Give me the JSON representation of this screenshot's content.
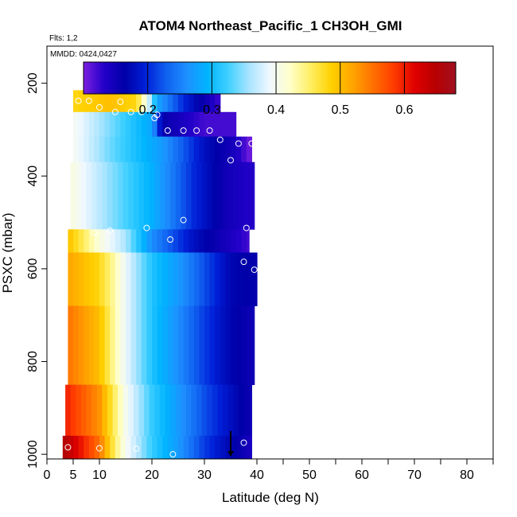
{
  "chart_data": {
    "type": "heatmap",
    "title": "ATOM4 Northeast_Pacific_1 CH3OH_GMI",
    "flights_text": "Flts: 1,2",
    "dates_text": "MMDD: 0424,0427",
    "xlabel": "Latitude (deg N)",
    "ylabel": "PSXC (mbar)",
    "xlim": [
      0,
      85
    ],
    "ylim": [
      1010,
      120
    ],
    "x_ticks": [
      0,
      5,
      10,
      20,
      30,
      40,
      50,
      60,
      70,
      80
    ],
    "y_ticks": [
      200,
      400,
      600,
      800,
      1000
    ],
    "colorbar": {
      "range": [
        0.1,
        0.68
      ],
      "ticks": [
        0.2,
        0.3,
        0.4,
        0.5,
        0.6
      ],
      "tick_labels": [
        "0.2",
        "0.3",
        "0.4",
        "0.5",
        "0.6"
      ],
      "colors": [
        "#7b1fe0",
        "#2200c8",
        "#0000a8",
        "#0020d8",
        "#1060f0",
        "#1e90ff",
        "#00b4ff",
        "#40d0ff",
        "#a8e4ff",
        "#f0f8ff",
        "#ffffc8",
        "#ffee60",
        "#ffd000",
        "#ffa500",
        "#ff7000",
        "#ff3c00",
        "#e00000",
        "#b80000",
        "#a01020"
      ]
    },
    "bands": [
      {
        "p_top": 172,
        "p_bot": 215,
        "x_start": 27.5,
        "x_end": 31,
        "values": [
          [
            27.5,
            0.1
          ],
          [
            31,
            0.1
          ]
        ]
      },
      {
        "p_top": 215,
        "p_bot": 262,
        "x_start": 5,
        "x_end": 33,
        "values": [
          [
            5,
            0.48
          ],
          [
            12,
            0.5
          ],
          [
            17,
            0.48
          ],
          [
            19,
            0.4
          ],
          [
            21,
            0.28
          ],
          [
            26,
            0.2
          ],
          [
            33,
            0.12
          ]
        ]
      },
      {
        "p_top": 262,
        "p_bot": 315,
        "x_start": 5,
        "x_end": 36,
        "values": [
          [
            5,
            0.4
          ],
          [
            10,
            0.36
          ],
          [
            20,
            0.28
          ],
          [
            22,
            0.16
          ],
          [
            30,
            0.12
          ],
          [
            36,
            0.12
          ]
        ]
      },
      {
        "p_top": 315,
        "p_bot": 370,
        "x_start": 5,
        "x_end": 39,
        "values": [
          [
            5,
            0.4
          ],
          [
            12,
            0.34
          ],
          [
            22,
            0.27
          ],
          [
            30,
            0.18
          ],
          [
            36,
            0.14
          ],
          [
            39,
            0.1
          ]
        ]
      },
      {
        "p_top": 370,
        "p_bot": 515,
        "x_start": 4.5,
        "x_end": 39.5,
        "values": [
          [
            4.5,
            0.41
          ],
          [
            12,
            0.35
          ],
          [
            20,
            0.29
          ],
          [
            28,
            0.2
          ],
          [
            34,
            0.15
          ],
          [
            39.5,
            0.13
          ]
        ]
      },
      {
        "p_top": 515,
        "p_bot": 565,
        "x_start": 4,
        "x_end": 38.5,
        "values": [
          [
            4,
            0.5
          ],
          [
            10,
            0.41
          ],
          [
            15,
            0.36
          ],
          [
            20,
            0.26
          ],
          [
            28,
            0.18
          ],
          [
            38.5,
            0.12
          ]
        ]
      },
      {
        "p_top": 565,
        "p_bot": 680,
        "x_start": 4,
        "x_end": 40,
        "values": [
          [
            4,
            0.52
          ],
          [
            10,
            0.48
          ],
          [
            13,
            0.43
          ],
          [
            15,
            0.39
          ],
          [
            20,
            0.31
          ],
          [
            25,
            0.27
          ],
          [
            30,
            0.22
          ],
          [
            35,
            0.17
          ],
          [
            40,
            0.16
          ]
        ]
      },
      {
        "p_top": 680,
        "p_bot": 850,
        "x_start": 4,
        "x_end": 39.5,
        "values": [
          [
            4,
            0.55
          ],
          [
            10,
            0.5
          ],
          [
            13,
            0.43
          ],
          [
            15,
            0.39
          ],
          [
            20,
            0.31
          ],
          [
            25,
            0.26
          ],
          [
            30,
            0.21
          ],
          [
            35,
            0.17
          ],
          [
            39.5,
            0.15
          ]
        ]
      },
      {
        "p_top": 850,
        "p_bot": 960,
        "x_start": 3.5,
        "x_end": 39,
        "values": [
          [
            3.5,
            0.6
          ],
          [
            10,
            0.53
          ],
          [
            13,
            0.45
          ],
          [
            15,
            0.4
          ],
          [
            20,
            0.32
          ],
          [
            25,
            0.27
          ],
          [
            30,
            0.22
          ],
          [
            35,
            0.18
          ],
          [
            39,
            0.15
          ]
        ]
      },
      {
        "p_top": 960,
        "p_bot": 1010,
        "x_start": 3,
        "x_end": 39,
        "values": [
          [
            3,
            0.66
          ],
          [
            10,
            0.55
          ],
          [
            13,
            0.45
          ],
          [
            15,
            0.4
          ],
          [
            20,
            0.32
          ],
          [
            25,
            0.27
          ],
          [
            30,
            0.21
          ],
          [
            35,
            0.17
          ],
          [
            39,
            0.14
          ]
        ]
      }
    ],
    "sample_points": [
      [
        28,
        200
      ],
      [
        31,
        200
      ],
      [
        6,
        238
      ],
      [
        8,
        238
      ],
      [
        14,
        240
      ],
      [
        10,
        252
      ],
      [
        13,
        262
      ],
      [
        16,
        262
      ],
      [
        18,
        262
      ],
      [
        21,
        268
      ],
      [
        20.5,
        275
      ],
      [
        23,
        302
      ],
      [
        26,
        302
      ],
      [
        28.5,
        302
      ],
      [
        31,
        302
      ],
      [
        33,
        322
      ],
      [
        36.5,
        330
      ],
      [
        39,
        330
      ],
      [
        35,
        366
      ],
      [
        26,
        495
      ],
      [
        38,
        512
      ],
      [
        9,
        522
      ],
      [
        12,
        518
      ],
      [
        19,
        512
      ],
      [
        23.5,
        537
      ],
      [
        37.5,
        585
      ],
      [
        39.5,
        602
      ],
      [
        4,
        985
      ],
      [
        10,
        987
      ],
      [
        17,
        988
      ],
      [
        24,
        1000
      ],
      [
        37.5,
        975
      ]
    ],
    "arrow_marker": {
      "x": 35,
      "p_from": 950,
      "p_to": 1005
    }
  }
}
